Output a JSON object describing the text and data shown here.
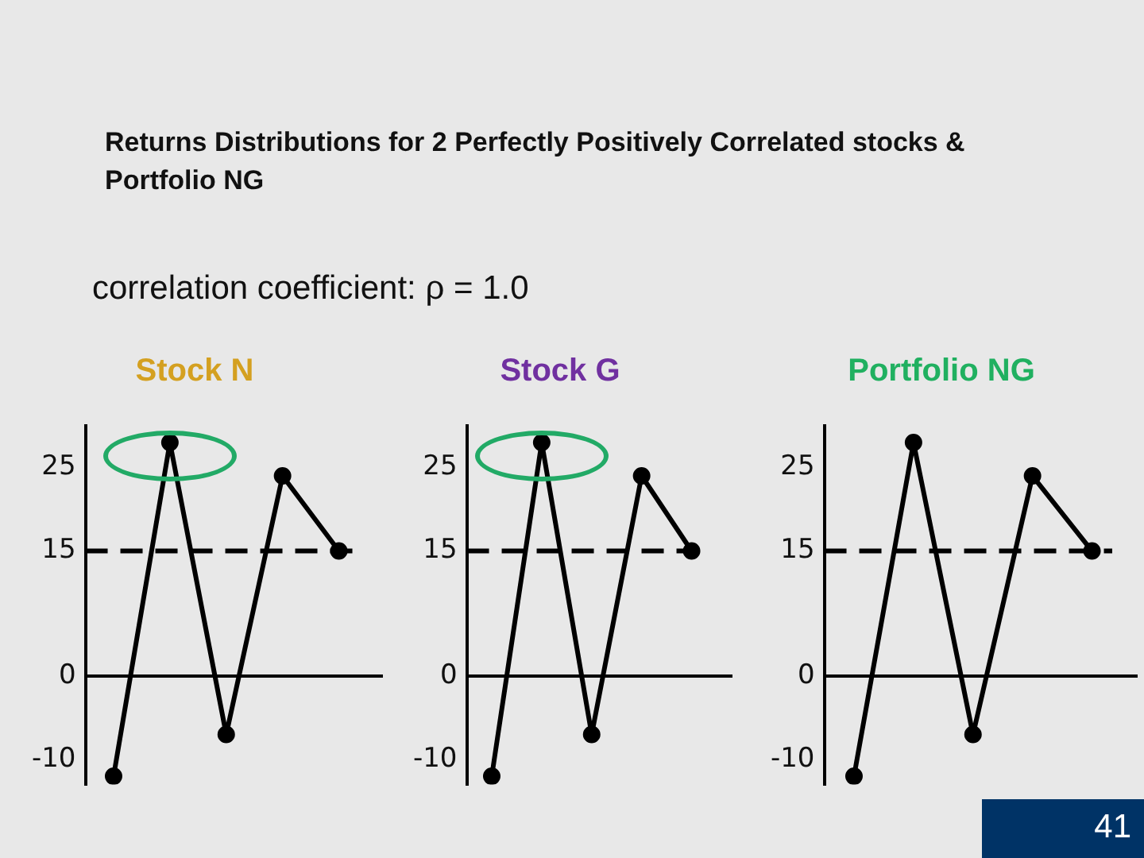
{
  "chart_data": [
    {
      "type": "other",
      "title": "Returns Distributions for 2 Perfectly Positively Correlated stocks & Portfolio NG",
      "subtitle": "correlation coefficient: ρ = 1.0",
      "annotations": [
        "41"
      ]
    },
    {
      "type": "line",
      "title": "Stock N",
      "categories": [
        null,
        null,
        null,
        null,
        null
      ],
      "series": [
        {
          "color": "#000000",
          "values": [
            -12,
            28,
            -7,
            24,
            15
          ]
        }
      ],
      "ylim": [
        -13,
        30
      ],
      "yticks": [
        -10,
        0,
        15,
        25
      ],
      "grid": false,
      "legend": false,
      "tick_labels": "y",
      "marker": "circle",
      "line_style": "solid",
      "ref_lines": [
        {
          "axis": "y",
          "value": 15,
          "line_style": "dashed",
          "color": "#000000"
        },
        {
          "axis": "y",
          "value": 0,
          "line_style": "solid",
          "color": "#000000"
        }
      ]
    },
    {
      "type": "line",
      "title": "Stock G",
      "categories": [
        null,
        null,
        null,
        null,
        null
      ],
      "series": [
        {
          "color": "#000000",
          "values": [
            -12,
            28,
            -7,
            24,
            15
          ]
        }
      ],
      "ylim": [
        -13,
        30
      ],
      "yticks": [
        -10,
        0,
        15,
        25
      ],
      "grid": false,
      "legend": false,
      "tick_labels": "y",
      "marker": "circle",
      "line_style": "solid",
      "ref_lines": [
        {
          "axis": "y",
          "value": 15,
          "line_style": "dashed",
          "color": "#000000"
        },
        {
          "axis": "y",
          "value": 0,
          "line_style": "solid",
          "color": "#000000"
        }
      ]
    },
    {
      "type": "line",
      "title": "Portfolio NG",
      "categories": [
        null,
        null,
        null,
        null,
        null
      ],
      "series": [
        {
          "color": "#000000",
          "values": [
            -12,
            28,
            -7,
            24,
            15
          ]
        }
      ],
      "ylim": [
        -13,
        30
      ],
      "yticks": [
        -10,
        0,
        15,
        25
      ],
      "grid": false,
      "legend": false,
      "tick_labels": "y",
      "marker": "circle",
      "line_style": "solid",
      "ref_lines": [
        {
          "axis": "y",
          "value": 15,
          "line_style": "dashed",
          "color": "#000000"
        },
        {
          "axis": "y",
          "value": 0,
          "line_style": "solid",
          "color": "#000000"
        }
      ]
    }
  ]
}
